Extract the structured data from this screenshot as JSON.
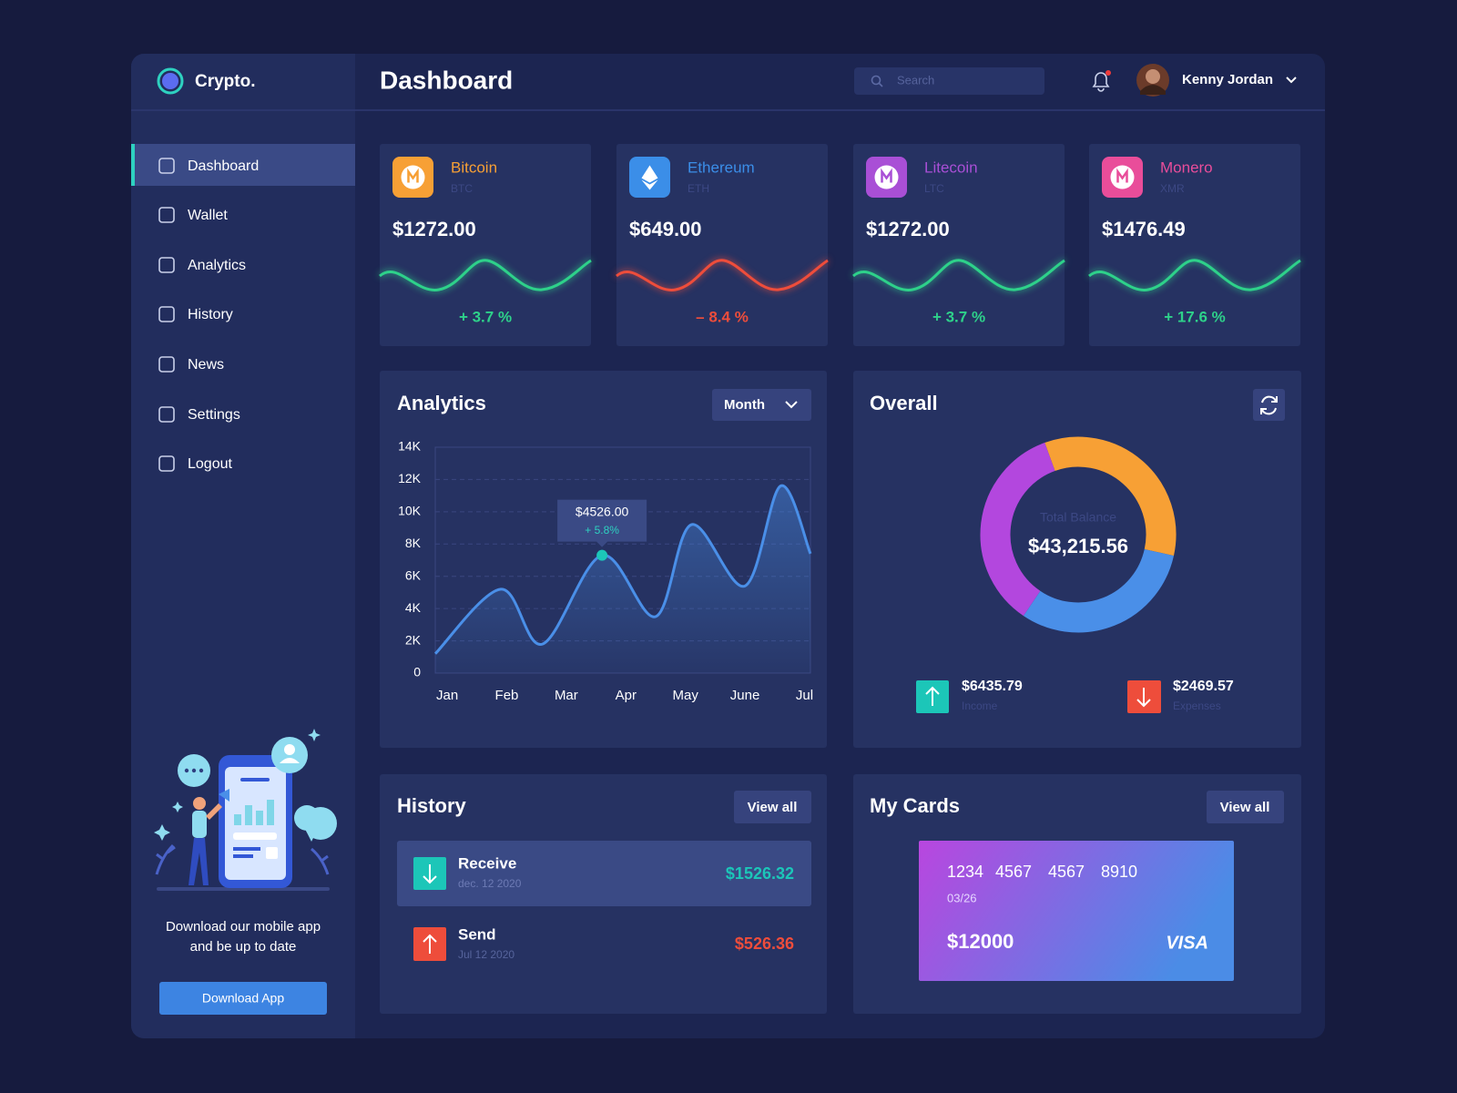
{
  "brand": "Crypto.",
  "header": {
    "title": "Dashboard",
    "search": "Search",
    "user": "Kenny Jordan"
  },
  "nav": [
    "Dashboard",
    "Wallet",
    "Analytics",
    "History",
    "News",
    "Settings",
    "Logout"
  ],
  "promo": {
    "lines": [
      "Download our mobile app",
      "and be up to date"
    ],
    "button": "Download App"
  },
  "coins": [
    {
      "name": "Bitcoin",
      "symbol": "BTC",
      "price": "$1272.00",
      "change": "+ 3.7 %",
      "color": "#f7a035",
      "trend_color": "#2ed18a"
    },
    {
      "name": "Ethereum",
      "symbol": "ETH",
      "price": "$649.00",
      "change": "– 8.4 %",
      "color": "#3b8ee8",
      "trend_color": "#ee4d3b"
    },
    {
      "name": "Litecoin",
      "symbol": "LTC",
      "price": "$1272.00",
      "change": "+ 3.7 %",
      "color": "#a94fd6",
      "trend_color": "#2ed18a"
    },
    {
      "name": "Monero",
      "symbol": "XMR",
      "price": "$1476.49",
      "change": "+ 17.6 %",
      "color": "#e94d9a",
      "trend_color": "#2ed18a"
    }
  ],
  "analytics": {
    "title": "Analytics",
    "period": "Month"
  },
  "overall": {
    "title": "Overall",
    "income": {
      "amount": "$6435.79",
      "label": "Income"
    },
    "expenses": {
      "amount": "$2469.57",
      "label": "Expenses"
    }
  },
  "history": {
    "title": "History",
    "view_all": "View all",
    "items": [
      {
        "type": "Receive",
        "date": "dec. 12 2020",
        "amount": "$1526.32"
      },
      {
        "type": "Send",
        "date": "Jul 12 2020",
        "amount": "$526.36"
      }
    ]
  },
  "cards": {
    "title": "My Cards",
    "view_all": "View all",
    "number": [
      "1234",
      "4567",
      "4567",
      "8910"
    ],
    "expiry": "03/26",
    "balance": "$12000",
    "brand": "VISA"
  },
  "chart_data": [
    {
      "type": "line",
      "x": [
        -0.2,
        0.9,
        1.6,
        2.6,
        3.5,
        4.1,
        5.0,
        5.6,
        6.1
      ],
      "values": [
        1200,
        5200,
        1800,
        7300,
        3500,
        9200,
        5400,
        11600,
        7400
      ],
      "color": "#4a8fe8",
      "xlim": [
        -0.2,
        6.1
      ],
      "xticks": [
        {
          "value": 0,
          "label": "Jan"
        },
        {
          "value": 1,
          "label": "Feb"
        },
        {
          "value": 2,
          "label": "Mar"
        },
        {
          "value": 3,
          "label": "Apr"
        },
        {
          "value": 4,
          "label": "May"
        },
        {
          "value": 5,
          "label": "June"
        },
        {
          "value": 6,
          "label": "Jul"
        }
      ],
      "ylim": [
        0,
        14000
      ],
      "yticks": [
        0,
        {
          "value": 2000,
          "label": "2K"
        },
        {
          "value": 4000,
          "label": "4K"
        },
        {
          "value": 6000,
          "label": "6K"
        },
        {
          "value": 8000,
          "label": "8K"
        },
        {
          "value": 10000,
          "label": "10K"
        },
        {
          "value": 12000,
          "label": "12K"
        },
        {
          "value": 14000,
          "label": "14K"
        }
      ],
      "grid": true,
      "tooltip": {
        "title": "$4526.00",
        "subtitle": "+ 5.8%"
      }
    },
    {
      "type": "donut",
      "values": [
        34,
        31,
        35
      ],
      "colors": [
        "#f7a035",
        "#4a8fe8",
        "#b347de"
      ],
      "center_label": "Total Balance",
      "center_value": "$43,215.56"
    }
  ]
}
